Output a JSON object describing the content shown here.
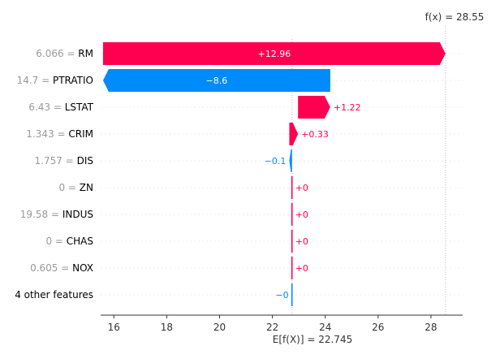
{
  "chart_data": {
    "type": "waterfall",
    "title": "",
    "xlabel": "",
    "ylabel": "",
    "xlim": [
      15.5,
      29.2
    ],
    "xticks": [
      16,
      18,
      20,
      22,
      24,
      26,
      28
    ],
    "base_value": 22.745,
    "base_label": "E[f(X)] = 22.745",
    "output_value": 28.55,
    "output_label": "f(x) = 28.55",
    "colors": {
      "positive": "#ff0051",
      "negative": "#008bfb",
      "axis": "#333333",
      "feature_value": "#999999"
    },
    "features": [
      {
        "value": "6.066",
        "name": "RM",
        "contribution": 12.96,
        "label": "+12.96"
      },
      {
        "value": "14.7",
        "name": "PTRATIO",
        "contribution": -8.6,
        "label": "−8.6"
      },
      {
        "value": "6.43",
        "name": "LSTAT",
        "contribution": 1.22,
        "label": "+1.22"
      },
      {
        "value": "1.343",
        "name": "CRIM",
        "contribution": 0.33,
        "label": "+0.33"
      },
      {
        "value": "1.757",
        "name": "DIS",
        "contribution": -0.1,
        "label": "−0.1"
      },
      {
        "value": "0",
        "name": "ZN",
        "contribution": 0.0,
        "label": "+0"
      },
      {
        "value": "19.58",
        "name": "INDUS",
        "contribution": 0.0,
        "label": "+0"
      },
      {
        "value": "0",
        "name": "CHAS",
        "contribution": 0.0,
        "label": "+0"
      },
      {
        "value": "0.605",
        "name": "NOX",
        "contribution": 0.0,
        "label": "+0"
      },
      {
        "value": "",
        "name": "4 other features",
        "contribution": -0.0,
        "label": "−0"
      }
    ]
  }
}
